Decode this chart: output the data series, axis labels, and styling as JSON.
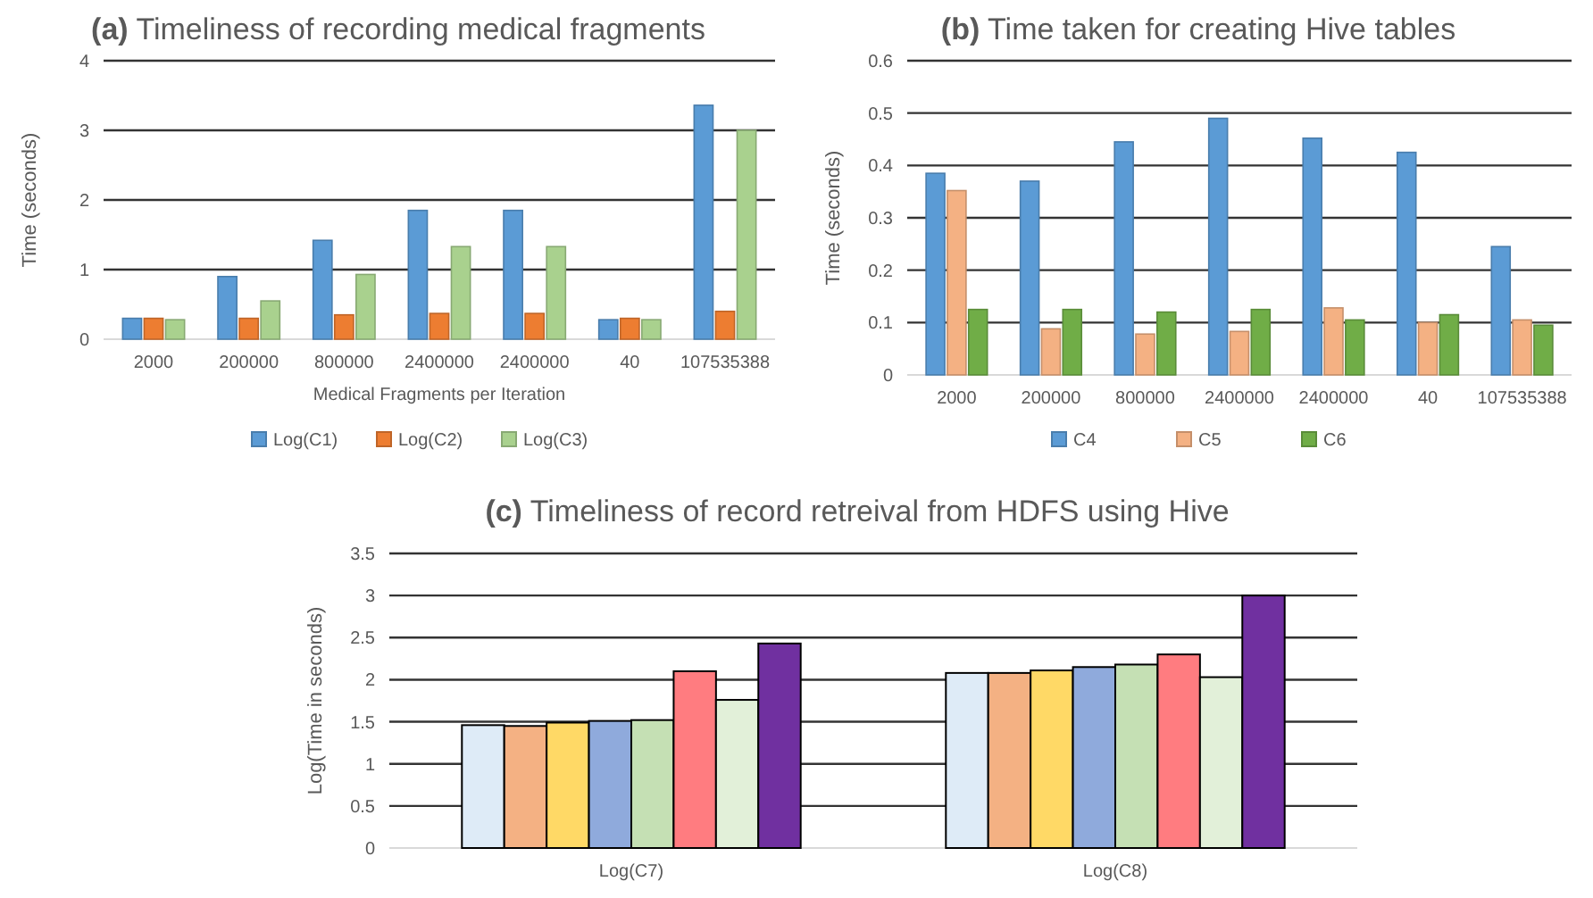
{
  "chart_data": [
    {
      "type": "bar",
      "title": "(a) Timeliness of recording medical fragments",
      "xlabel": "Medical Fragments per Iteration",
      "ylabel": "Time (seconds)",
      "categories": [
        "2000",
        "200000",
        "800000",
        "2400000",
        "2400000",
        "40",
        "107535388"
      ],
      "series": [
        {
          "name": "Log(C1)",
          "color": "#5b9bd5",
          "values": [
            0.3,
            0.9,
            1.42,
            1.85,
            1.85,
            0.28,
            3.36
          ]
        },
        {
          "name": "Log(C2)",
          "color": "#ed7d31",
          "values": [
            0.3,
            0.3,
            0.35,
            0.37,
            0.37,
            0.3,
            0.4
          ]
        },
        {
          "name": "Log(C3)",
          "color": "#a9d18e",
          "values": [
            0.28,
            0.55,
            0.93,
            1.33,
            1.33,
            0.28,
            3.0
          ]
        }
      ],
      "ylim": [
        0,
        4
      ],
      "yticks": [
        0,
        1,
        2,
        3,
        4
      ],
      "grid": "y",
      "legend": "bottom"
    },
    {
      "type": "bar",
      "title": "(b) Time taken for creating Hive tables",
      "ylabel": "Time (seconds)",
      "categories": [
        "2000",
        "200000",
        "800000",
        "2400000",
        "2400000",
        "40",
        "107535388"
      ],
      "series": [
        {
          "name": "C4",
          "color": "#5b9bd5",
          "values": [
            0.385,
            0.37,
            0.445,
            0.49,
            0.452,
            0.425,
            0.245
          ]
        },
        {
          "name": "C5",
          "color": "#f4b183",
          "values": [
            0.352,
            0.088,
            0.078,
            0.083,
            0.128,
            0.1,
            0.105
          ]
        },
        {
          "name": "C6",
          "color": "#70ad47",
          "values": [
            0.125,
            0.125,
            0.12,
            0.125,
            0.105,
            0.115,
            0.095
          ]
        }
      ],
      "ylim": [
        0,
        0.6
      ],
      "yticks": [
        0,
        0.1,
        0.2,
        0.3,
        0.4,
        0.5,
        0.6
      ],
      "grid": "y",
      "legend": "bottom"
    },
    {
      "type": "bar",
      "title": "(c) Timeliness of record retreival from HDFS using Hive",
      "ylabel": "Log(Time in seconds)",
      "categories": [
        "Log(C7)",
        "Log(C8)"
      ],
      "series": [
        {
          "color": "#deebf7",
          "values": [
            1.46,
            2.08
          ]
        },
        {
          "color": "#f4b183",
          "values": [
            1.45,
            2.08
          ]
        },
        {
          "color": "#ffd966",
          "values": [
            1.49,
            2.11
          ]
        },
        {
          "color": "#8faadc",
          "values": [
            1.51,
            2.15
          ]
        },
        {
          "color": "#c5e0b4",
          "values": [
            1.52,
            2.18
          ]
        },
        {
          "color": "#ff7c80",
          "values": [
            2.1,
            2.3
          ]
        },
        {
          "color": "#e2f0d9",
          "values": [
            1.76,
            2.03
          ]
        },
        {
          "color": "#7030a0",
          "values": [
            2.43,
            3.0
          ]
        }
      ],
      "ylim": [
        0,
        3.5
      ],
      "yticks": [
        0,
        0.5,
        1,
        1.5,
        2,
        2.5,
        3,
        3.5
      ],
      "grid": "y"
    }
  ]
}
